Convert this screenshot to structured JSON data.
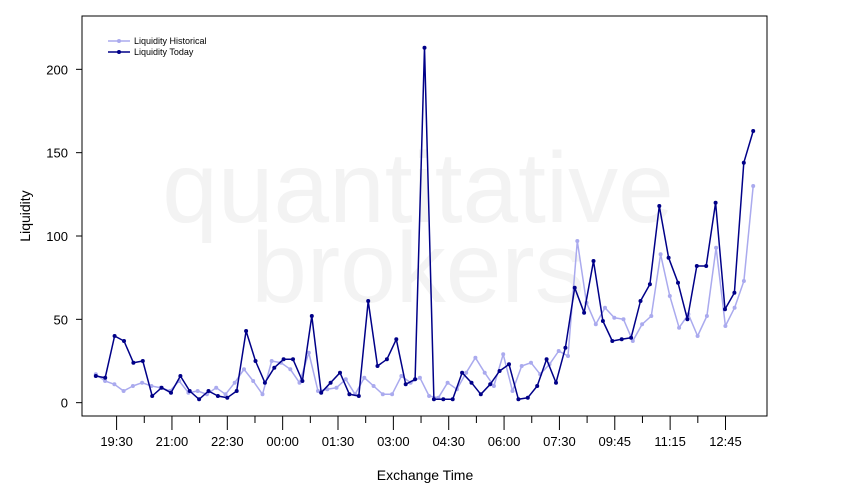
{
  "chart_data": {
    "type": "line",
    "xlabel": "Exchange Time",
    "ylabel": "Liquidity",
    "watermark": [
      "quantitative",
      "brokers"
    ],
    "ylim": [
      -8,
      232
    ],
    "yticks": [
      0,
      50,
      100,
      150,
      200
    ],
    "x_tick_labels": [
      "19:30",
      "21:00",
      "22:30",
      "00:00",
      "01:30",
      "03:00",
      "04:30",
      "06:00",
      "07:30",
      "09:45",
      "11:15",
      "12:45"
    ],
    "x_tick_positions": [
      1,
      5,
      9,
      13,
      17,
      21,
      25,
      29,
      33,
      37,
      41,
      45
    ],
    "xlim": [
      -1.5,
      48
    ],
    "legend_position": "top-left",
    "grid": false,
    "series": [
      {
        "name": "Liquidity Historical",
        "color": "#aaaaee",
        "values": [
          17,
          13,
          11,
          7,
          10,
          12,
          10,
          9,
          7,
          13,
          6,
          7,
          5,
          9,
          5,
          12,
          20,
          13,
          5,
          25,
          24,
          20,
          12,
          30,
          7,
          8,
          9,
          14,
          5,
          15,
          10,
          5,
          5,
          16,
          12,
          15,
          4,
          3,
          12,
          8,
          18,
          27,
          18,
          10,
          29,
          7,
          22,
          24,
          17,
          23,
          31,
          28,
          97,
          60,
          47,
          57,
          51,
          50,
          37,
          47,
          52,
          89,
          64,
          45,
          53,
          40,
          52,
          93,
          46,
          57,
          73,
          130
        ]
      },
      {
        "name": "Liquidity Today",
        "color": "#000088",
        "values": [
          16,
          15,
          40,
          37,
          24,
          25,
          4,
          9,
          6,
          16,
          7,
          2,
          7,
          4,
          3,
          7,
          43,
          25,
          12,
          21,
          26,
          26,
          13,
          52,
          6,
          12,
          18,
          5,
          4,
          61,
          22,
          26,
          38,
          11,
          14,
          213,
          2,
          2,
          2,
          18,
          12,
          5,
          11,
          19,
          23,
          2,
          3,
          10,
          26,
          12,
          33,
          69,
          54,
          85,
          49,
          37,
          38,
          39,
          61,
          71,
          118,
          87,
          72,
          50,
          82,
          82,
          120,
          56,
          66,
          144,
          163
        ]
      }
    ]
  }
}
